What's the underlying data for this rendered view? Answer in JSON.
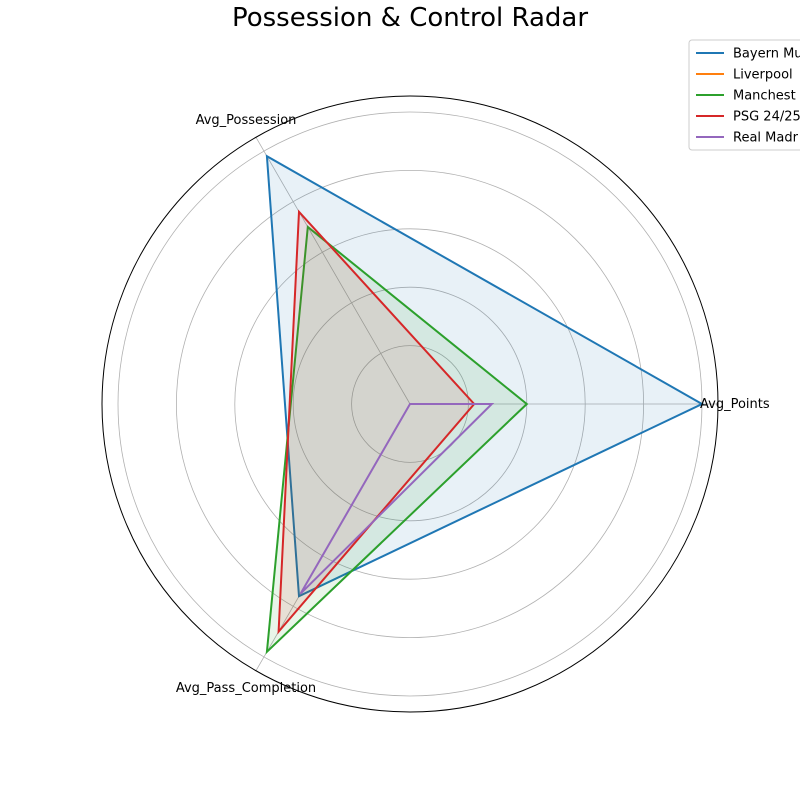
{
  "chart_data": {
    "type": "radar",
    "title": "Possession & Control Radar",
    "axes": [
      "Avg_Points",
      "Avg_Possession",
      "Avg_Pass_Completion"
    ],
    "r_range": [
      0,
      1
    ],
    "grid": true,
    "legend_position": "top-right",
    "series": [
      {
        "name": "Bayern Mu",
        "color": "#1f77b4",
        "fill": true,
        "values": [
          1.0,
          0.98,
          0.76
        ]
      },
      {
        "name": "Liverpool",
        "color": "#ff7f0e",
        "fill": false,
        "values": [
          0.02,
          0.0,
          0.0
        ]
      },
      {
        "name": "Manchest",
        "color": "#2ca02c",
        "fill": true,
        "values": [
          0.4,
          0.7,
          0.98
        ]
      },
      {
        "name": "PSG 24/25",
        "color": "#d62728",
        "fill": true,
        "values": [
          0.22,
          0.76,
          0.9
        ]
      },
      {
        "name": "Real Madr",
        "color": "#9467bd",
        "fill": false,
        "values": [
          0.28,
          0.0,
          0.75
        ]
      }
    ]
  }
}
